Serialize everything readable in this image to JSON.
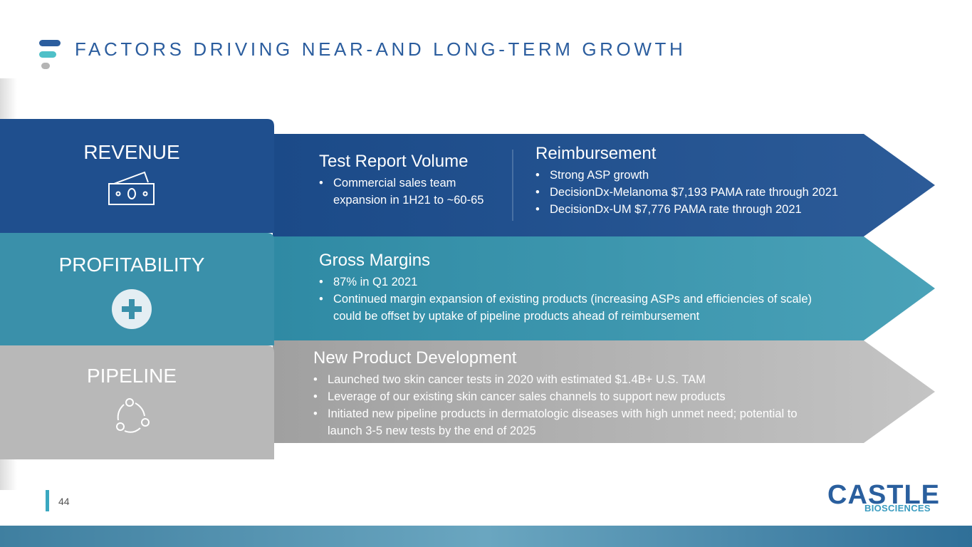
{
  "header": {
    "title": "FACTORS DRIVING NEAR-AND LONG-TERM GROWTH"
  },
  "rows": [
    {
      "label": "REVENUE",
      "sections": [
        {
          "heading": "Test Report Volume",
          "bullets": [
            "Commercial sales team expansion in 1H21 to ~60-65"
          ]
        },
        {
          "heading": "Reimbursement",
          "bullets": [
            "Strong ASP growth",
            "DecisionDx-Melanoma $7,193 PAMA rate through 2021",
            "DecisionDx-UM $7,776 PAMA rate through 2021"
          ]
        }
      ]
    },
    {
      "label": "PROFITABILITY",
      "sections": [
        {
          "heading": "Gross Margins",
          "bullets": [
            "87% in Q1 2021",
            "Continued margin expansion of existing products (increasing ASPs and efficiencies of scale) could be offset by uptake of pipeline products ahead of reimbursement"
          ]
        }
      ]
    },
    {
      "label": "PIPELINE",
      "sections": [
        {
          "heading": "New Product Development",
          "bullets": [
            "Launched two skin cancer tests in 2020 with estimated $1.4B+ U.S. TAM",
            "Leverage of our existing skin cancer sales channels to support new products",
            "Initiated new pipeline products in dermatologic diseases with high unmet need; potential to launch 3-5 new tests by the end of 2025"
          ]
        }
      ]
    }
  ],
  "footer": {
    "page": "44",
    "logo": "CASTLE",
    "logo_sub": "BIOSCIENCES"
  }
}
